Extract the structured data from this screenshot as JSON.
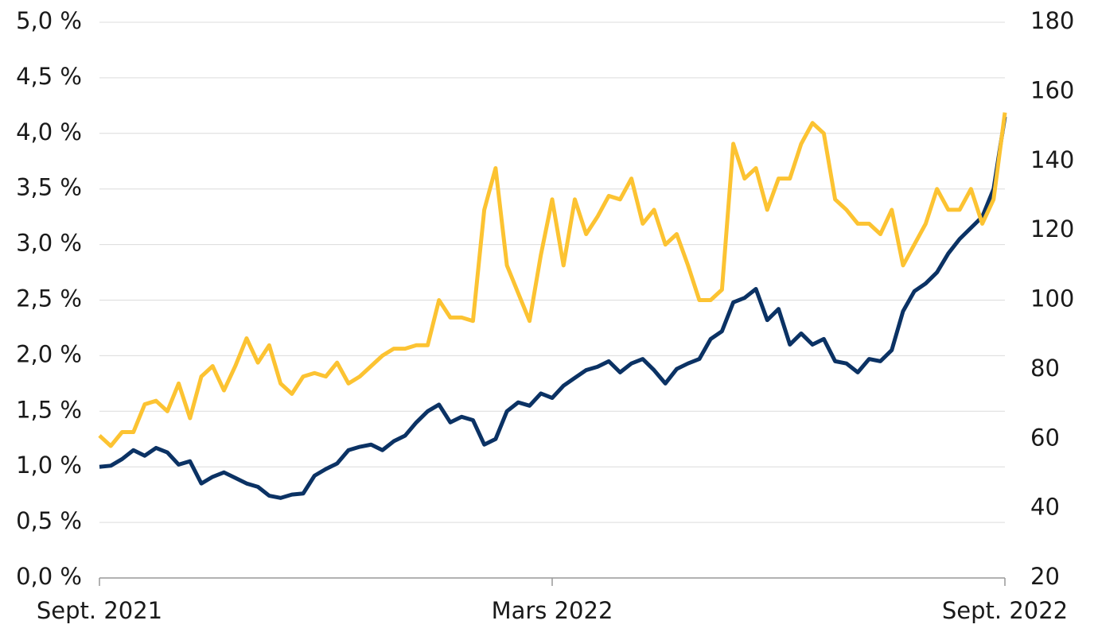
{
  "chart_data": {
    "type": "line",
    "categories": [
      "Sept. 2021",
      null,
      null,
      null,
      null,
      null,
      null,
      null,
      null,
      null,
      null,
      null,
      null,
      null,
      null,
      null,
      null,
      null,
      null,
      null,
      null,
      null,
      null,
      null,
      null,
      null,
      null,
      null,
      null,
      null,
      null,
      null,
      null,
      null,
      null,
      null,
      null,
      null,
      null,
      null,
      "Mars 2022",
      null,
      null,
      null,
      null,
      null,
      null,
      null,
      null,
      null,
      null,
      null,
      null,
      null,
      null,
      null,
      null,
      null,
      null,
      null,
      null,
      null,
      null,
      null,
      null,
      null,
      null,
      null,
      null,
      null,
      null,
      null,
      null,
      null,
      null,
      null,
      null,
      null,
      null,
      null,
      "Sept. 2022"
    ],
    "series": [
      {
        "color": "#0b3264",
        "axis": "y",
        "values": [
          1.0,
          1.01,
          1.07,
          1.15,
          1.1,
          1.17,
          1.13,
          1.02,
          1.05,
          0.85,
          0.91,
          0.95,
          0.9,
          0.85,
          0.82,
          0.74,
          0.72,
          0.75,
          0.76,
          0.92,
          0.98,
          1.03,
          1.15,
          1.18,
          1.2,
          1.15,
          1.23,
          1.28,
          1.4,
          1.5,
          1.56,
          1.4,
          1.45,
          1.42,
          1.2,
          1.25,
          1.5,
          1.58,
          1.55,
          1.66,
          1.62,
          1.73,
          1.8,
          1.87,
          1.9,
          1.95,
          1.85,
          1.93,
          1.97,
          1.87,
          1.75,
          1.88,
          1.93,
          1.97,
          2.15,
          2.22,
          2.48,
          2.52,
          2.6,
          2.32,
          2.42,
          2.1,
          2.2,
          2.1,
          2.15,
          1.95,
          1.93,
          1.85,
          1.97,
          1.95,
          2.05,
          2.4,
          2.58,
          2.65,
          2.75,
          2.92,
          3.05,
          3.15,
          3.25,
          3.5,
          4.15
        ]
      },
      {
        "color": "#fcc332",
        "axis": "y2",
        "values": [
          61,
          58,
          62,
          62,
          70,
          71,
          68,
          76,
          66,
          78,
          81,
          74,
          81,
          89,
          82,
          87,
          76,
          73,
          78,
          79,
          78,
          82,
          76,
          78,
          81,
          84,
          86,
          86,
          87,
          87,
          100,
          95,
          95,
          94,
          126,
          138,
          110,
          102,
          94,
          113,
          129,
          110,
          129,
          119,
          124,
          130,
          129,
          135,
          122,
          126,
          116,
          119,
          110,
          100,
          100,
          103,
          145,
          135,
          138,
          126,
          135,
          135,
          145,
          151,
          148,
          129,
          126,
          122,
          122,
          119,
          126,
          110,
          116,
          122,
          132,
          126,
          126,
          132,
          122,
          129,
          154
        ]
      }
    ],
    "ylim": [
      0,
      5
    ],
    "yticks": [
      {
        "value": 0,
        "label": "0,0 %"
      },
      {
        "value": 0.5,
        "label": "0,5 %"
      },
      {
        "value": 1,
        "label": "1,0 %"
      },
      {
        "value": 1.5,
        "label": "1,5 %"
      },
      {
        "value": 2,
        "label": "2,0 %"
      },
      {
        "value": 2.5,
        "label": "2,5 %"
      },
      {
        "value": 3,
        "label": "3,0 %"
      },
      {
        "value": 3.5,
        "label": "3,5 %"
      },
      {
        "value": 4,
        "label": "4,0 %"
      },
      {
        "value": 4.5,
        "label": "4,5 %"
      },
      {
        "value": 5,
        "label": "5,0 %"
      }
    ],
    "y2lim": [
      20,
      180
    ],
    "y2ticks": [
      20,
      40,
      60,
      80,
      100,
      120,
      140,
      160,
      180
    ],
    "grid": true
  }
}
